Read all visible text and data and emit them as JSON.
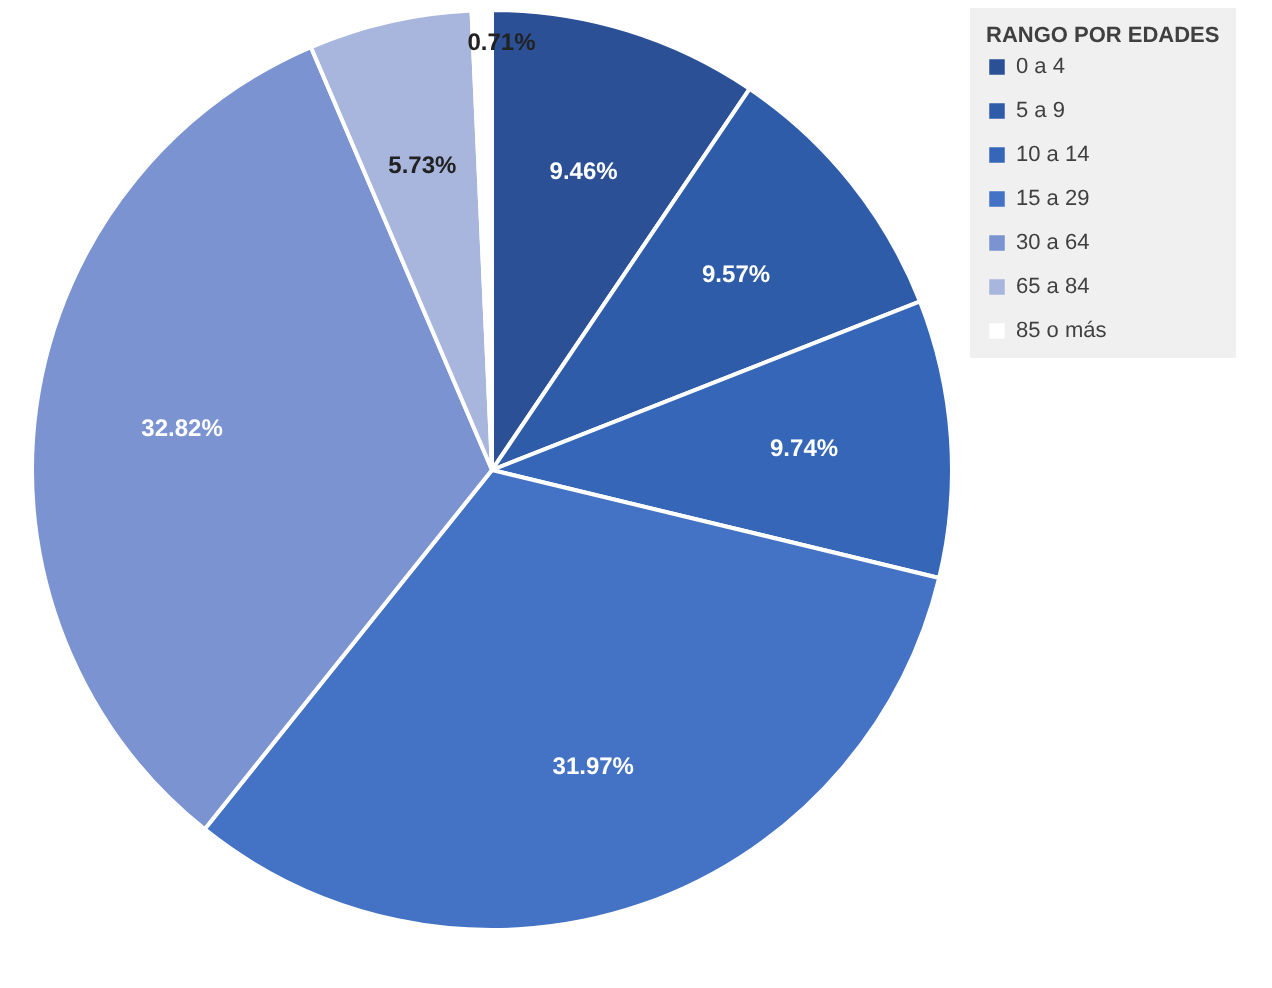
{
  "chart_data": {
    "type": "pie",
    "legend_title": "RANGO POR EDADES",
    "legend": "right",
    "data_labels": true,
    "categories": [
      "0 a 4",
      "5 a 9",
      "10 a 14",
      "15 a 29",
      "30 a 64",
      "65 a 84",
      "85 o más"
    ],
    "values": [
      9.46,
      9.57,
      9.74,
      31.97,
      32.82,
      5.73,
      0.71
    ],
    "value_labels": [
      "9.46%",
      "9.57%",
      "9.74%",
      "31.97%",
      "32.82%",
      "5.73%",
      "0.71%"
    ],
    "colors": [
      "#2b5096",
      "#2f5ca8",
      "#3566b8",
      "#4472c4",
      "#7b93d0",
      "#a8b6dd",
      "#ffffff"
    ]
  }
}
